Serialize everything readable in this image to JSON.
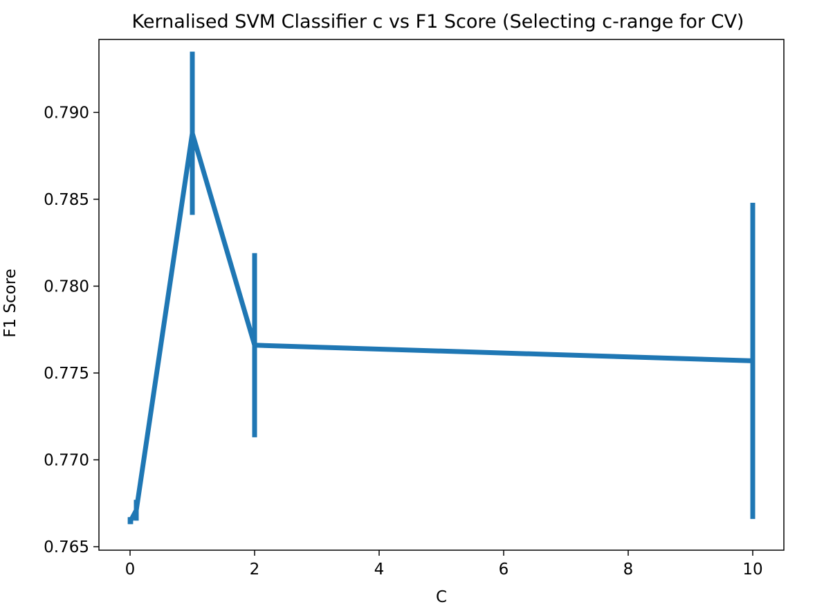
{
  "chart_data": {
    "type": "line",
    "title": "Kernalised SVM Classifier c vs F1 Score (Selecting c-range for CV)",
    "xlabel": "C",
    "ylabel": "F1 Score",
    "xlim": [
      -0.5,
      10.5
    ],
    "ylim": [
      0.7648,
      0.7942
    ],
    "xticks": [
      0,
      2,
      4,
      6,
      8,
      10
    ],
    "yticks": [
      0.765,
      0.77,
      0.775,
      0.78,
      0.785,
      0.79
    ],
    "ytick_labels": [
      "0.765",
      "0.770",
      "0.775",
      "0.780",
      "0.785",
      "0.790"
    ],
    "grid": false,
    "color": "#1f77b4",
    "series": [
      {
        "x": [
          0.001,
          0.01,
          0.1,
          1,
          2,
          10
        ],
        "y": [
          0.7665,
          0.7665,
          0.7671,
          0.7888,
          0.7766,
          0.7757
        ],
        "yerr": [
          0.0002,
          0.0002,
          0.0006,
          0.0047,
          0.0053,
          0.0091
        ]
      }
    ]
  }
}
